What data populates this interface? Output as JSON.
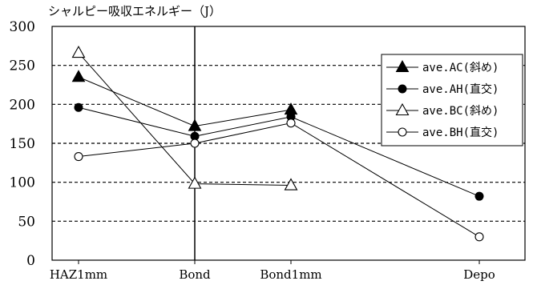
{
  "chart_data": {
    "type": "line",
    "title": "シャルピー吸収エネルギー（J）",
    "xlabel": "",
    "ylabel": "",
    "categories": [
      "HAZ1mm",
      "Bond",
      "Bond1mm",
      "Depo"
    ],
    "ylim": [
      0,
      300
    ],
    "yticks": [
      0,
      50,
      100,
      150,
      200,
      250,
      300
    ],
    "grid": "horizontal dashed",
    "legend_placement": "top-right",
    "series": [
      {
        "name": "ave.AC(斜め)",
        "marker": "filled-triangle",
        "x": [
          0,
          1,
          2
        ],
        "values": [
          235,
          172,
          193
        ]
      },
      {
        "name": "ave.AH(直交)",
        "marker": "filled-circle",
        "x": [
          0,
          1,
          2,
          3
        ],
        "values": [
          196,
          159,
          184,
          82
        ]
      },
      {
        "name": "ave.BC(斜め)",
        "marker": "open-triangle",
        "x": [
          0,
          1,
          2
        ],
        "values": [
          266,
          98,
          96
        ]
      },
      {
        "name": "ave.BH(直交)",
        "marker": "open-circle",
        "x": [
          0,
          1,
          2,
          3
        ],
        "values": [
          133,
          150,
          176,
          30
        ]
      }
    ]
  }
}
